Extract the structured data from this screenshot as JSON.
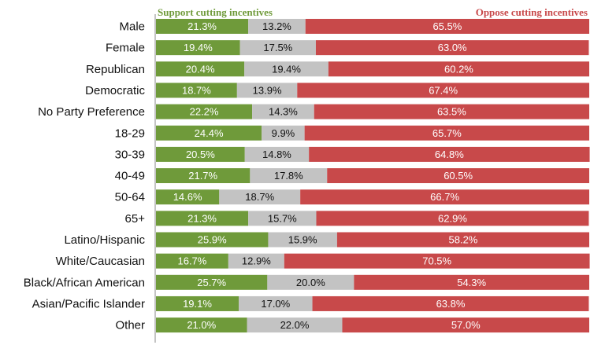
{
  "chart_data": {
    "type": "bar",
    "orientation": "horizontal",
    "stacked": true,
    "normalized_to": 100,
    "xlim": [
      0,
      100
    ],
    "legend": {
      "placement": "top",
      "entries": [
        {
          "label": "Support cutting incentives",
          "position": "left",
          "color": "#6f9a3a"
        },
        {
          "label": "Oppose cutting incentives",
          "position": "right",
          "color": "#c8494a"
        }
      ]
    },
    "categories": [
      "Male",
      "Female",
      "Republican",
      "Democratic",
      "No Party Preference",
      "18-29",
      "30-39",
      "40-49",
      "50-64",
      "65+",
      "Latino/Hispanic",
      "White/Caucasian",
      "Black/African American",
      "Asian/Pacific Islander",
      "Other"
    ],
    "series": [
      {
        "name": "Support cutting incentives",
        "color": "#6f9a3a",
        "label_color": "#ffffff",
        "values": [
          21.3,
          19.4,
          20.4,
          18.7,
          22.2,
          24.4,
          20.5,
          21.7,
          14.6,
          21.3,
          25.9,
          16.7,
          25.7,
          19.1,
          21.0
        ],
        "labels": [
          "21.3%",
          "19.4%",
          "20.4%",
          "18.7%",
          "22.2%",
          "24.4%",
          "20.5%",
          "21.7%",
          "14.6%",
          "21.3%",
          "25.9%",
          "16.7%",
          "25.7%",
          "19.1%",
          "21.0%"
        ]
      },
      {
        "color": "#c3c3c3",
        "label_color": "#111111",
        "values": [
          13.2,
          17.5,
          19.4,
          13.9,
          14.3,
          9.9,
          14.8,
          17.8,
          18.7,
          15.7,
          15.9,
          12.9,
          20.0,
          17.0,
          22.0
        ],
        "labels": [
          "13.2%",
          "17.5%",
          "19.4%",
          "13.9%",
          "14.3%",
          "9.9%",
          "14.8%",
          "17.8%",
          "18.7%",
          "15.7%",
          "15.9%",
          "12.9%",
          "20.0%",
          "17.0%",
          "22.0%"
        ]
      },
      {
        "name": "Oppose cutting incentives",
        "color": "#c8494a",
        "label_color": "#ffffff",
        "values": [
          65.5,
          63.0,
          60.2,
          67.4,
          63.5,
          65.7,
          64.8,
          60.5,
          66.7,
          62.9,
          58.2,
          70.5,
          54.3,
          63.8,
          57.0
        ],
        "labels": [
          "65.5%",
          "63.0%",
          "60.2%",
          "67.4%",
          "63.5%",
          "65.7%",
          "64.8%",
          "60.5%",
          "66.7%",
          "62.9%",
          "58.2%",
          "70.5%",
          "54.3%",
          "63.8%",
          "57.0%"
        ]
      }
    ],
    "grid": false
  }
}
